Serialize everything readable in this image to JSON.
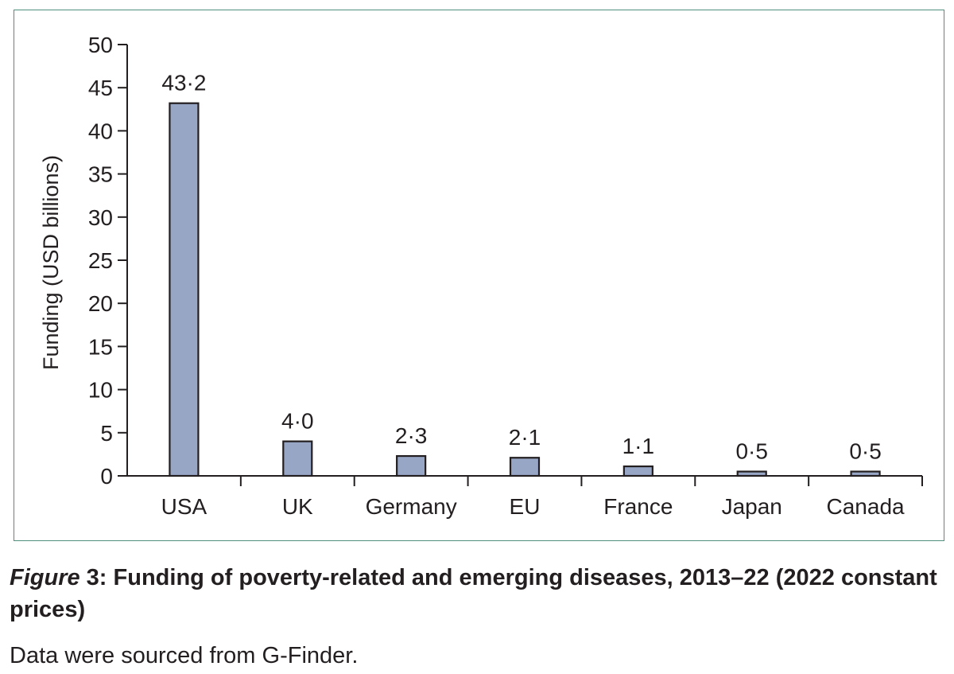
{
  "chart_data": {
    "type": "bar",
    "categories": [
      "USA",
      "UK",
      "Germany",
      "EU",
      "France",
      "Japan",
      "Canada"
    ],
    "values": [
      43.2,
      4.0,
      2.3,
      2.1,
      1.1,
      0.5,
      0.5
    ],
    "data_labels": [
      "43·2",
      "4·0",
      "2·3",
      "2·1",
      "1·1",
      "0·5",
      "0·5"
    ],
    "yticks": [
      0,
      5,
      10,
      15,
      20,
      25,
      30,
      35,
      40,
      45,
      50
    ],
    "ylim": [
      0,
      50
    ],
    "xlabel": "",
    "ylabel": "Funding (USD billions)",
    "grid": false,
    "bar_color": "#98a6c6",
    "bar_edge_color": "#231f20"
  },
  "caption": {
    "label": "Figure",
    "number": " 3:",
    "title": " Funding of poverty-related and emerging diseases, 2013–22 (2022 constant prices)",
    "source": "Data were sourced from G-Finder."
  },
  "colors": {
    "frame": "#4f8f7d",
    "text": "#231f20"
  }
}
